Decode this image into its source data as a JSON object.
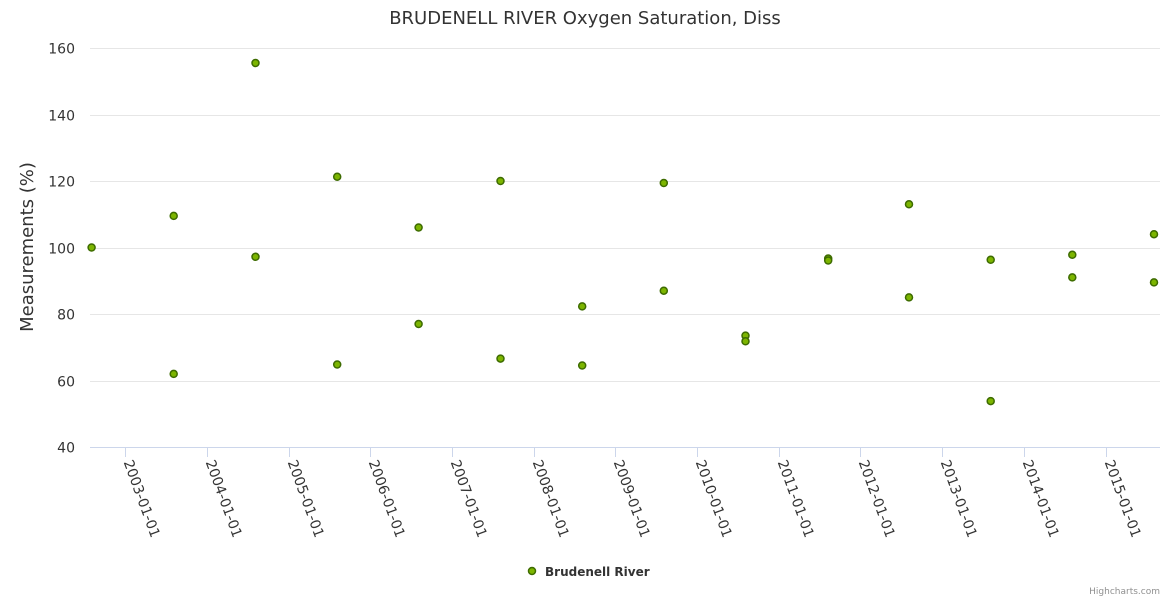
{
  "chart_data": {
    "type": "scatter",
    "title": "BRUDENELL RIVER Oxygen Saturation, Diss",
    "ylabel": "Measurements (%)",
    "xlabel": "",
    "ylim": [
      40,
      160
    ],
    "yticks": [
      40,
      60,
      80,
      100,
      120,
      140,
      160
    ],
    "xlim": [
      "2002-07-28",
      "2015-09-01"
    ],
    "xticks": [
      "2003-01-01",
      "2004-01-01",
      "2005-01-01",
      "2006-01-01",
      "2007-01-01",
      "2008-01-01",
      "2009-01-01",
      "2010-01-01",
      "2011-01-01",
      "2012-01-01",
      "2013-01-01",
      "2014-01-01",
      "2015-01-01"
    ],
    "grid": true,
    "legend": "bottom-center",
    "series": [
      {
        "name": "Brudenell River",
        "color": "#7cb500",
        "border": "#3d6b00",
        "points": [
          {
            "x": "2002-08-04",
            "y": 100
          },
          {
            "x": "2003-08-06",
            "y": 109.5
          },
          {
            "x": "2003-08-06",
            "y": 62
          },
          {
            "x": "2004-08-06",
            "y": 155.5
          },
          {
            "x": "2004-08-06",
            "y": 97.2
          },
          {
            "x": "2005-08-06",
            "y": 121.3
          },
          {
            "x": "2005-08-06",
            "y": 64.8
          },
          {
            "x": "2006-08-05",
            "y": 106
          },
          {
            "x": "2006-08-05",
            "y": 77
          },
          {
            "x": "2007-08-06",
            "y": 120
          },
          {
            "x": "2007-08-06",
            "y": 66.6
          },
          {
            "x": "2008-08-05",
            "y": 82.3
          },
          {
            "x": "2008-08-05",
            "y": 64.5
          },
          {
            "x": "2009-08-05",
            "y": 119.4
          },
          {
            "x": "2009-08-05",
            "y": 87
          },
          {
            "x": "2010-08-05",
            "y": 73.5
          },
          {
            "x": "2010-08-05",
            "y": 71.8
          },
          {
            "x": "2011-08-10",
            "y": 96.7
          },
          {
            "x": "2011-08-10",
            "y": 96.1
          },
          {
            "x": "2012-08-05",
            "y": 113
          },
          {
            "x": "2012-08-05",
            "y": 85
          },
          {
            "x": "2013-08-05",
            "y": 96.3
          },
          {
            "x": "2013-08-05",
            "y": 53.8
          },
          {
            "x": "2014-08-05",
            "y": 97.8
          },
          {
            "x": "2014-08-05",
            "y": 91
          },
          {
            "x": "2015-08-05",
            "y": 104
          },
          {
            "x": "2015-08-05",
            "y": 89.5
          }
        ]
      }
    ]
  },
  "credits": "Highcharts.com"
}
